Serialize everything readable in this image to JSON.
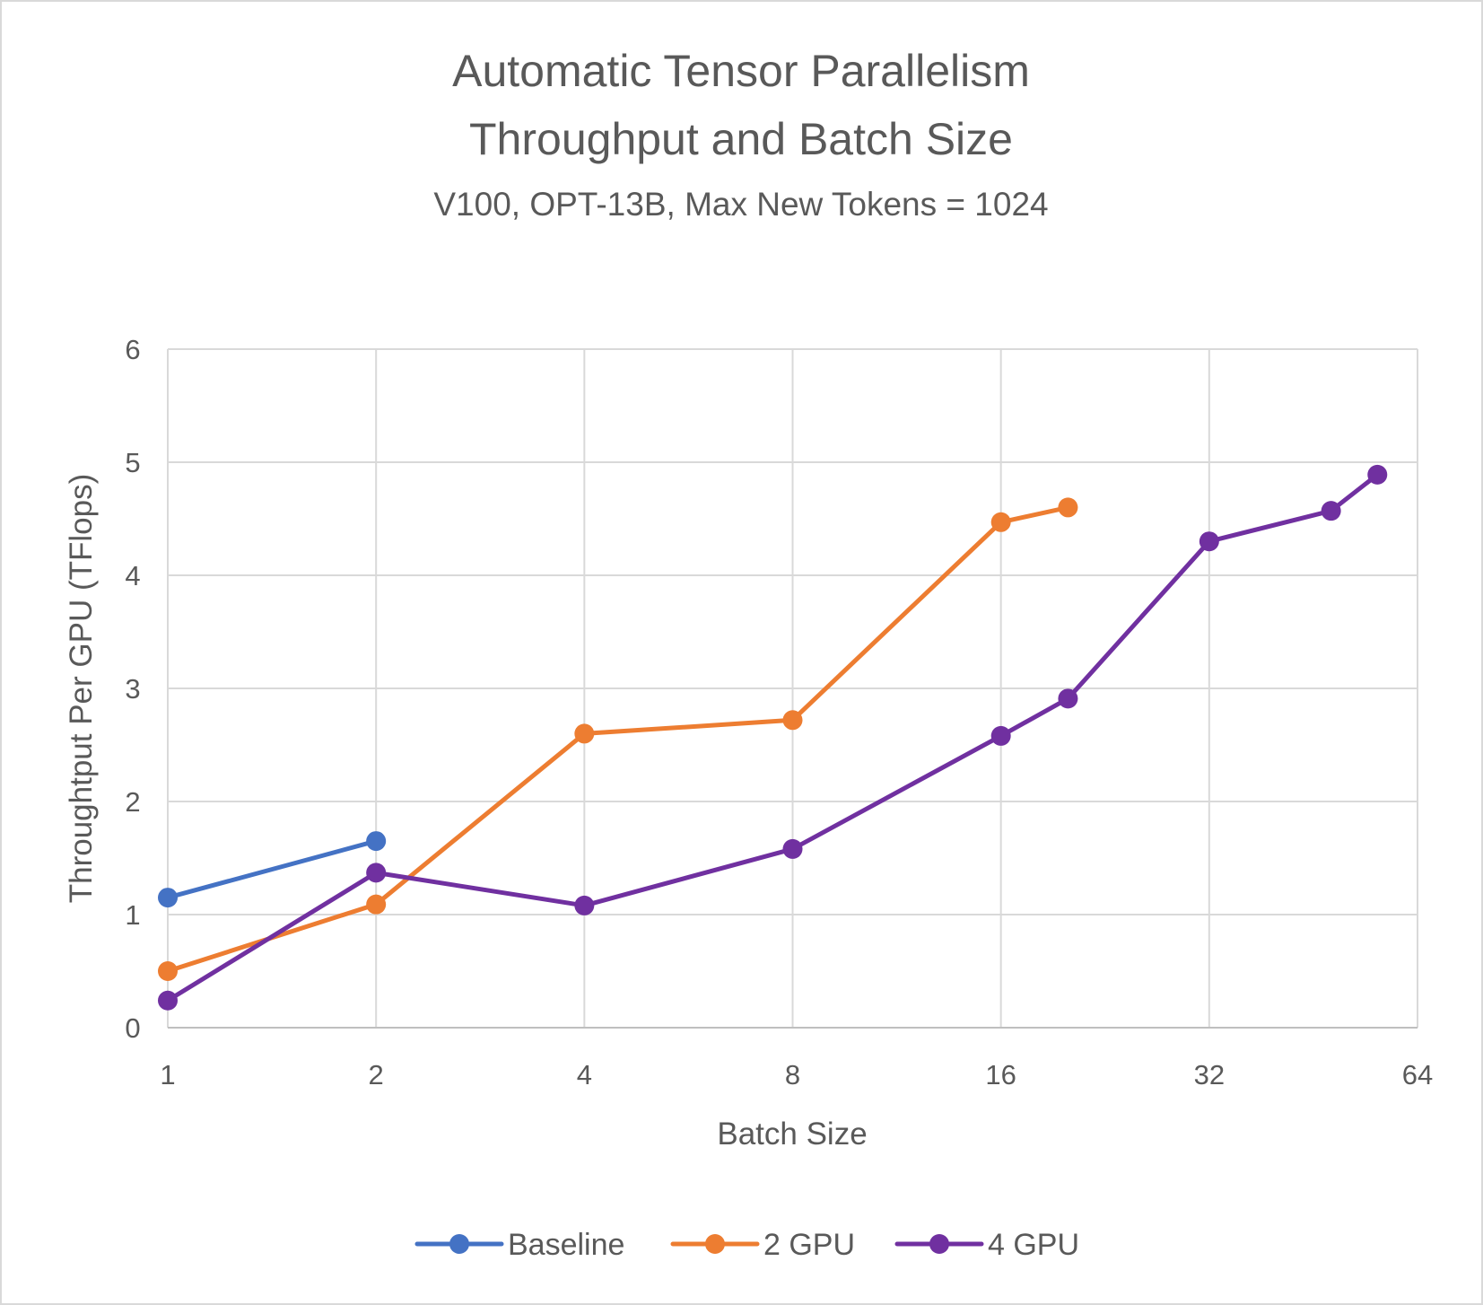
{
  "chart_data": {
    "type": "line",
    "title": [
      "Automatic Tensor Parallelism",
      "Throughput and Batch Size"
    ],
    "subtitle": "V100, OPT-13B, Max New Tokens = 1024",
    "xlabel": "Batch Size",
    "ylabel": "Throughtput Per GPU (TFlops)",
    "x_scale": "log2",
    "xlim": [
      1,
      64
    ],
    "ylim": [
      0,
      6
    ],
    "x_ticks": [
      "1",
      "2",
      "4",
      "8",
      "16",
      "32",
      "64"
    ],
    "y_ticks": [
      "0",
      "1",
      "2",
      "3",
      "4",
      "5",
      "6"
    ],
    "grid": true,
    "legend_position": "bottom",
    "series": [
      {
        "name": "Baseline",
        "color": "#4472C4",
        "x": [
          1,
          2
        ],
        "y": [
          1.15,
          1.65
        ]
      },
      {
        "name": "2 GPU",
        "color": "#ED7D31",
        "x": [
          1,
          2,
          4,
          8,
          16,
          20
        ],
        "y": [
          0.5,
          1.09,
          2.6,
          2.72,
          4.47,
          4.6
        ]
      },
      {
        "name": "4 GPU",
        "color": "#7030A0",
        "x": [
          1,
          2,
          4,
          8,
          16,
          20,
          32,
          48,
          56
        ],
        "y": [
          0.24,
          1.37,
          1.08,
          1.58,
          2.58,
          2.91,
          4.3,
          4.57,
          4.89
        ]
      }
    ]
  }
}
